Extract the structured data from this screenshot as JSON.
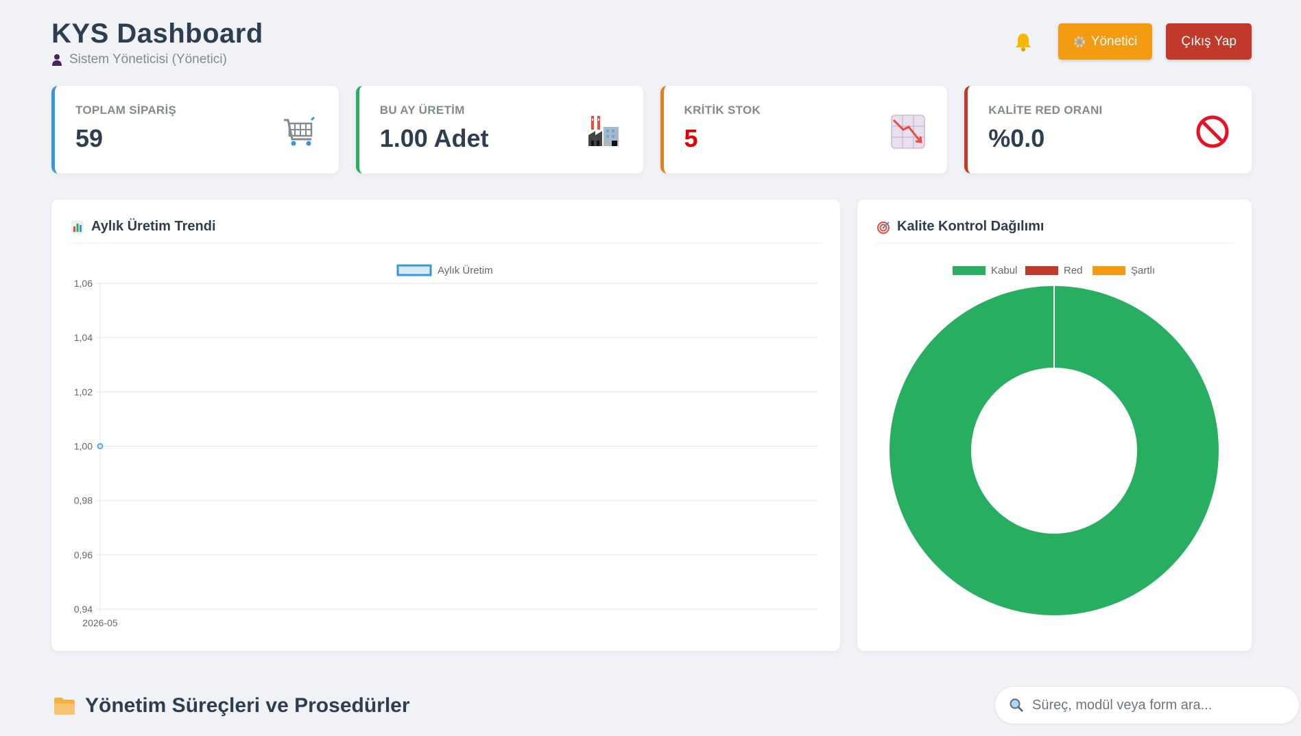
{
  "header": {
    "title": "KYS Dashboard",
    "subtitle": "Sistem Yöneticisi (Yönetici)",
    "admin_label": "Yönetici",
    "logout_label": "Çıkış Yap",
    "colors": {
      "admin": "#f39c12",
      "logout": "#c0392b"
    }
  },
  "cards": [
    {
      "label": "TOPLAM SİPARİŞ",
      "value": "59",
      "icon": "shopping-cart-icon",
      "accent": "#3498db"
    },
    {
      "label": "BU AY ÜRETİM",
      "value": "1.00 Adet",
      "icon": "factory-icon",
      "accent": "#27ae60"
    },
    {
      "label": "KRİTİK STOK",
      "value": "5",
      "icon": "chart-decreasing-icon",
      "accent": "#e67e22"
    },
    {
      "label": "KALİTE RED ORANI",
      "value": "%0.0",
      "icon": "prohibited-icon",
      "accent": "#c0392b"
    }
  ],
  "trend_panel": {
    "title": "Aylık Üretim Trendi"
  },
  "quality_panel": {
    "title": "Kalite Kontrol Dağılımı"
  },
  "chart_data": [
    {
      "type": "line",
      "title": "",
      "xlabel": "",
      "ylabel": "",
      "x": [
        "2026-05"
      ],
      "series": [
        {
          "name": "Aylık Üretim",
          "values": [
            1.0
          ],
          "color": "#3498db"
        }
      ],
      "ylim": [
        0.94,
        1.06
      ],
      "yticks": [
        "1,06",
        "1,04",
        "1,02",
        "1,00",
        "0,98",
        "0,96",
        "0,94"
      ],
      "grid": true,
      "legend": "top"
    },
    {
      "type": "pie",
      "title": "",
      "labels": [
        "Kabul",
        "Red",
        "Şartlı"
      ],
      "values": [
        1,
        0,
        0
      ],
      "colors": [
        "#27ae60",
        "#c0392b",
        "#f39c12"
      ],
      "legend": "top"
    }
  ],
  "section": {
    "title": "Yönetim Süreçleri ve Prosedürler"
  },
  "search": {
    "placeholder": "Süreç, modül veya form ara..."
  }
}
